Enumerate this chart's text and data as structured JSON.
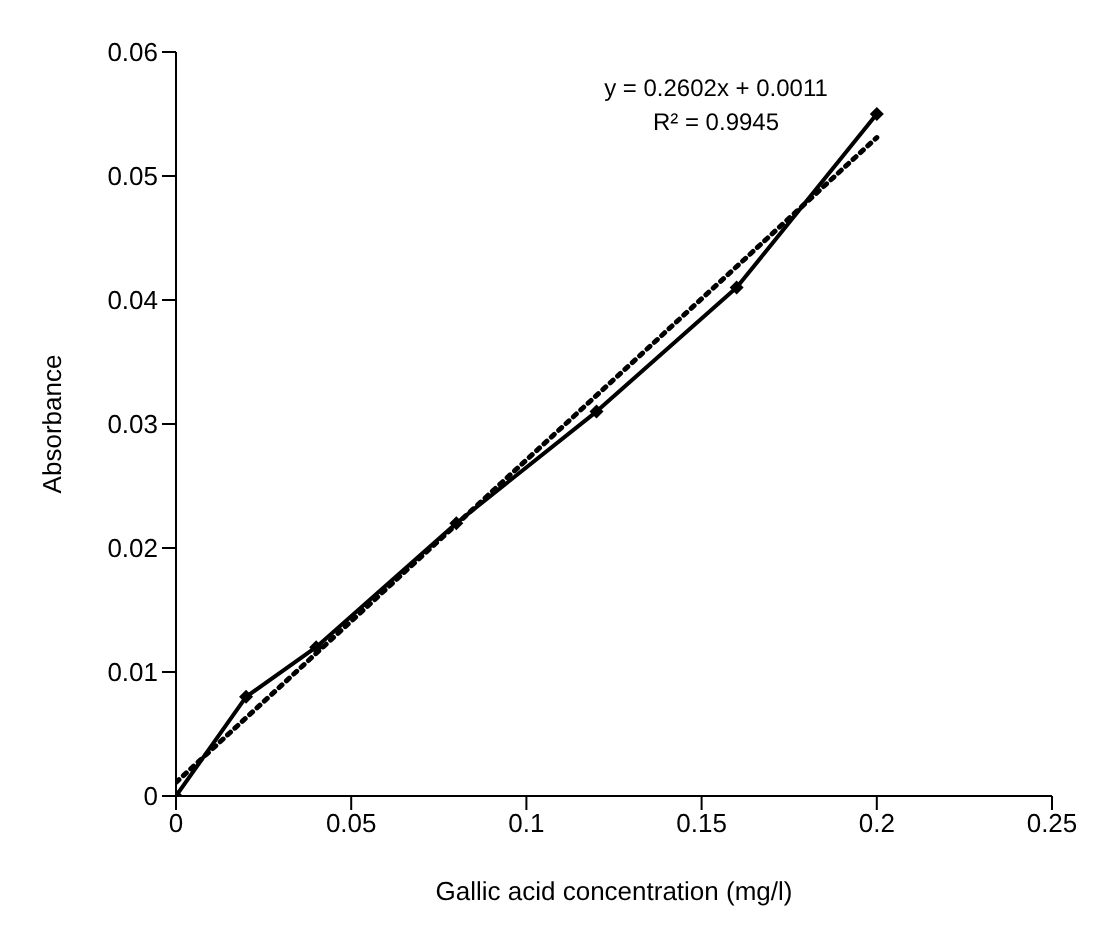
{
  "chart_data": {
    "type": "line",
    "xlabel": "Gallic acid concentration (mg/l)",
    "ylabel": "Absorbance",
    "xlim": [
      0,
      0.25
    ],
    "xticks": [
      0,
      0.05,
      0.1,
      0.15,
      0.2,
      0.25
    ],
    "ylim": [
      0,
      0.06
    ],
    "yticks": [
      0,
      0.01,
      0.02,
      0.03,
      0.04,
      0.05,
      0.06
    ],
    "marker": "diamond",
    "line_style": "solid",
    "annotations": [
      "y = 0.2602x + 0.0011",
      "R² = 0.9945"
    ],
    "series": [
      {
        "color": "#000000",
        "x": [
          0,
          0.02,
          0.04,
          0.08,
          0.12,
          0.16,
          0.2
        ],
        "values": [
          0,
          0.008,
          0.012,
          0.022,
          0.031,
          0.041,
          0.055
        ]
      },
      {
        "type": "line",
        "color": "#000000",
        "marker": "none",
        "line_style": "dotted",
        "x": [
          0,
          0.2
        ],
        "values": [
          0.0011,
          0.0531
        ]
      }
    ]
  }
}
